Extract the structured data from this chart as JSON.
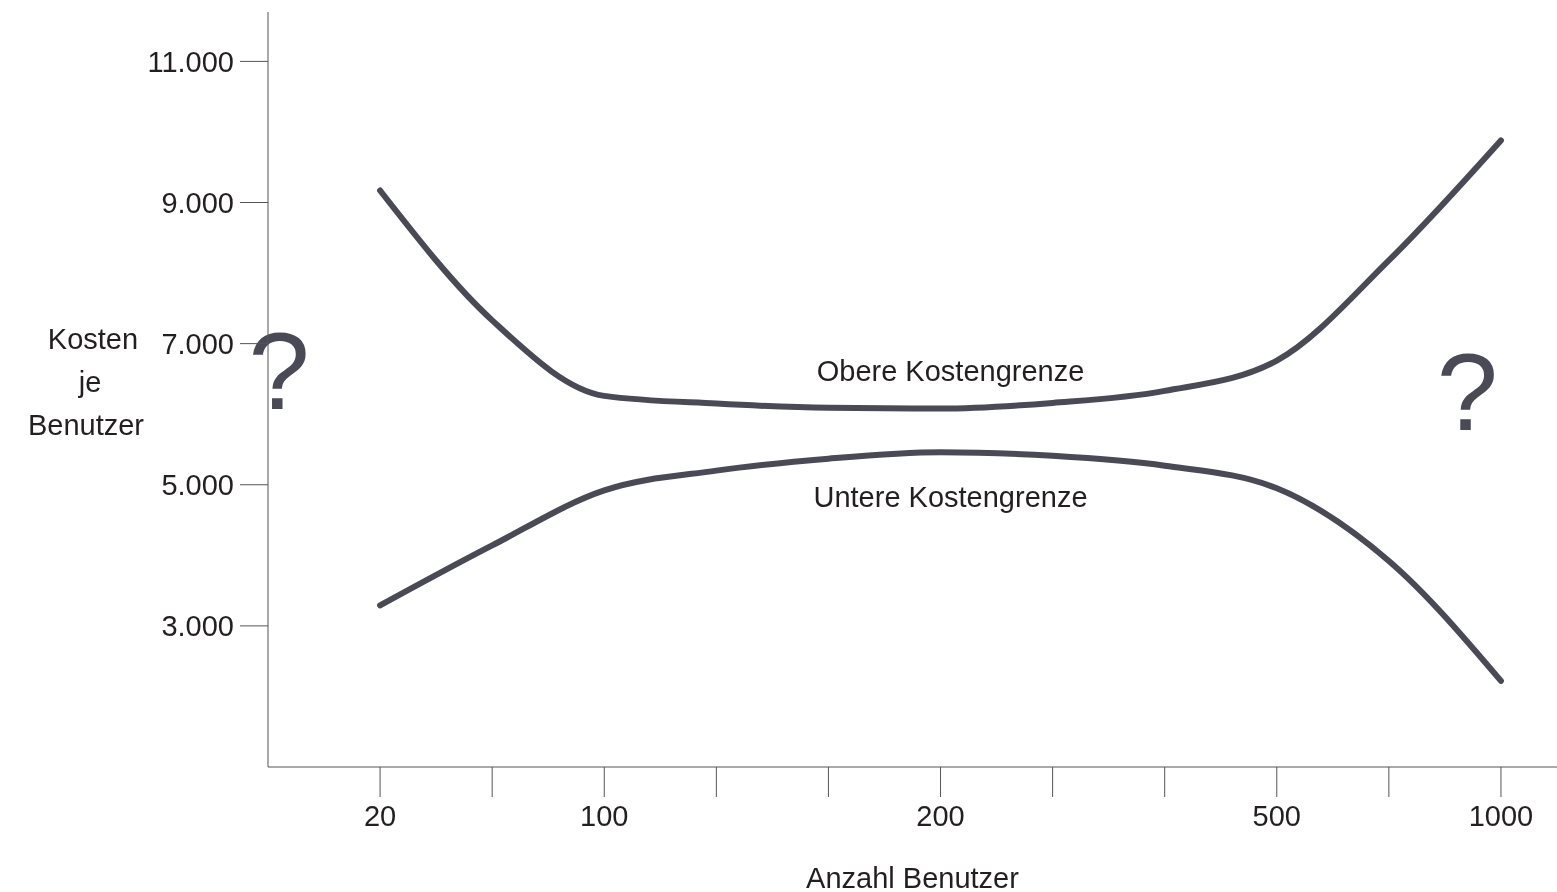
{
  "chart_data": {
    "type": "line",
    "xlabel": "Anzahl Benutzer",
    "ylabel": "Kosten je Benutzer",
    "categories": [
      null,
      "20",
      null,
      "100",
      null,
      null,
      "200",
      null,
      null,
      "500",
      null,
      "1000"
    ],
    "series": [
      {
        "name": "Obere Kostengrenze",
        "color": "#4a4a56",
        "values": [
          null,
          9170,
          7330,
          6260,
          6150,
          6090,
          6080,
          6160,
          6330,
          6760,
          8180,
          9880
        ]
      },
      {
        "name": "Untere Kostengrenze",
        "color": "#4a4a56",
        "values": [
          null,
          3290,
          4140,
          4920,
          5200,
          5370,
          5460,
          5410,
          5270,
          4950,
          3920,
          2220
        ]
      }
    ],
    "ylim": [
      1000,
      11700
    ],
    "yticks": [
      {
        "value": 3000,
        "label": "3.000"
      },
      {
        "value": 5000,
        "label": "5.000"
      },
      {
        "value": 7000,
        "label": "7.000"
      },
      {
        "value": 9000,
        "label": "9.000"
      },
      {
        "value": 11000,
        "label": "11.000"
      }
    ],
    "annotations": [
      "?",
      "?"
    ],
    "grid": false,
    "legend": false,
    "marker": "none",
    "line_style": "solid"
  }
}
